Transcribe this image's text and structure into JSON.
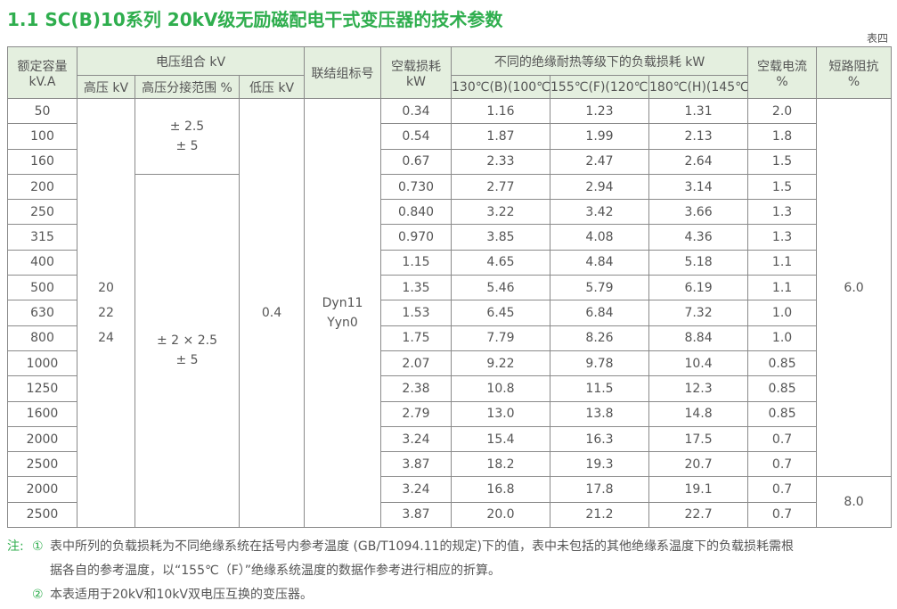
{
  "title": "1.1  SC(B)10系列 20kV级无励磁配电干式变压器的技术参数",
  "table_label": "表四",
  "header": {
    "capacity": [
      "额定容量",
      "kV.A"
    ],
    "voltage_group": "电压组合 kV",
    "hv": "高压 kV",
    "tap_range": "高压分接范围 %",
    "lv": "低压 kV",
    "vector_group": "联结组标号",
    "no_load_loss": [
      "空载损耗",
      "kW"
    ],
    "load_loss_group": "不同的绝缘耐热等级下的负载损耗 kW",
    "load_loss": [
      "130℃(B)(100℃)",
      "155℃(F)(120℃)",
      "180℃(H)(145℃)"
    ],
    "no_load_current": [
      "空载电流",
      "%"
    ],
    "impedance": [
      "短路阻抗",
      "%"
    ]
  },
  "table": {
    "rows": [
      [
        "50",
        "0.34",
        "1.16",
        "1.23",
        "1.31",
        "2.0"
      ],
      [
        "100",
        "0.54",
        "1.87",
        "1.99",
        "2.13",
        "1.8"
      ],
      [
        "160",
        "0.67",
        "2.33",
        "2.47",
        "2.64",
        "1.5"
      ],
      [
        "200",
        "0.730",
        "2.77",
        "2.94",
        "3.14",
        "1.5"
      ],
      [
        "250",
        "0.840",
        "3.22",
        "3.42",
        "3.66",
        "1.3"
      ],
      [
        "315",
        "0.970",
        "3.85",
        "4.08",
        "4.36",
        "1.3"
      ],
      [
        "400",
        "1.15",
        "4.65",
        "4.84",
        "5.18",
        "1.1"
      ],
      [
        "500",
        "1.35",
        "5.46",
        "5.79",
        "6.19",
        "1.1"
      ],
      [
        "630",
        "1.53",
        "6.45",
        "6.84",
        "7.32",
        "1.0"
      ],
      [
        "800",
        "1.75",
        "7.79",
        "8.26",
        "8.84",
        "1.0"
      ],
      [
        "1000",
        "2.07",
        "9.22",
        "9.78",
        "10.4",
        "0.85"
      ],
      [
        "1250",
        "2.38",
        "10.8",
        "11.5",
        "12.3",
        "0.85"
      ],
      [
        "1600",
        "2.79",
        "13.0",
        "13.8",
        "14.8",
        "0.85"
      ],
      [
        "2000",
        "3.24",
        "15.4",
        "16.3",
        "17.5",
        "0.7"
      ],
      [
        "2500",
        "3.87",
        "18.2",
        "19.3",
        "20.7",
        "0.7"
      ],
      [
        "2000",
        "3.24",
        "16.8",
        "17.8",
        "19.1",
        "0.7"
      ],
      [
        "2500",
        "3.87",
        "20.0",
        "21.2",
        "22.7",
        "0.7"
      ]
    ],
    "hv": [
      "20",
      "22",
      "24"
    ],
    "tap_range": [
      [
        "± 2.5",
        "± 5"
      ],
      [
        "± 2 × 2.5",
        "± 5"
      ]
    ],
    "lv": "0.4",
    "vector_group": [
      "Dyn11",
      "Yyn0"
    ],
    "impedance": [
      "6.0",
      "8.0"
    ]
  },
  "notes": {
    "prefix": "注:",
    "items": [
      {
        "marker": "①",
        "lines": [
          "表中所列的负载损耗为不同绝缘系统在括号内参考温度 (GB/T1094.11的规定)下的值，表中未包括的其他绝缘系温度下的负载损耗需根",
          "据各自的参考温度，以“155℃（F）”绝缘系统温度的数据作参考进行相应的折算。"
        ]
      },
      {
        "marker": "②",
        "lines": [
          "本表适用于20kV和10kV双电压互换的变压器。"
        ]
      }
    ]
  }
}
